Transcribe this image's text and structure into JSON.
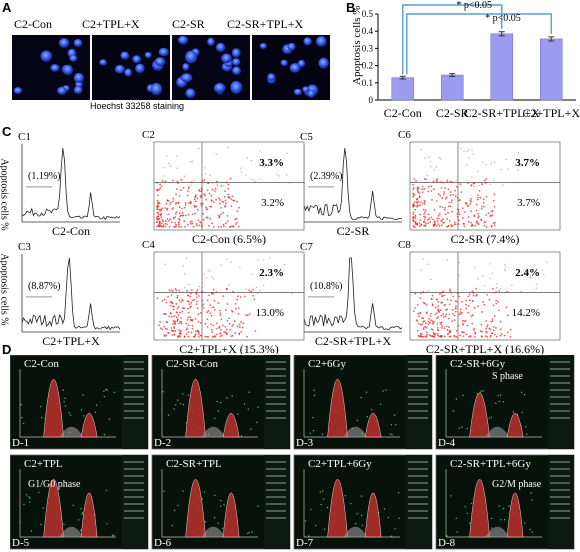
{
  "panelA": {
    "label": "A",
    "groups": [
      "C2-Con",
      "C2+TPL+X",
      "C2-SR",
      "C2-SR+TPL+X"
    ],
    "caption": "Hoechst 33258 staining"
  },
  "panelC": {
    "label": "C",
    "ylabel": "Apoptosis cells %",
    "histograms": [
      {
        "id": "C1",
        "pct": "(1.19%)",
        "name": "C2-Con"
      },
      {
        "id": "C3",
        "pct": "(8.87%)",
        "name": "C2+TPL+X"
      },
      {
        "id": "C5",
        "pct": "(2.39%)",
        "name": "C2-SR"
      },
      {
        "id": "C7",
        "pct": "(10.8%)",
        "name": "C2-SR+TPL+X"
      }
    ],
    "scatters": [
      {
        "id": "C2",
        "ur": "3.3%",
        "lr": "3.2%",
        "name": "C2-Con (6.5%)"
      },
      {
        "id": "C4",
        "ur": "2.3%",
        "lr": "13.0%",
        "name": "C2+TPL+X (15.3%)"
      },
      {
        "id": "C6",
        "ur": "3.7%",
        "lr": "3.7%",
        "name": "C2-SR (7.4%)"
      },
      {
        "id": "C8",
        "ur": "2.4%",
        "lr": "14.2%",
        "name": "C2-SR+TPL+X (16.6%)"
      }
    ]
  },
  "panelD": {
    "label": "D",
    "panels": [
      {
        "title": "C2-Con",
        "id": "D-1",
        "annotation": ""
      },
      {
        "title": "C2-SR-Con",
        "id": "D-2",
        "annotation": ""
      },
      {
        "title": "C2+6Gy",
        "id": "D-3",
        "annotation": ""
      },
      {
        "title": "C2-SR+6Gy",
        "id": "D-4",
        "annotation": "S phase"
      },
      {
        "title": "C2+TPL",
        "id": "D-5",
        "annotation": "G1/G0 phase"
      },
      {
        "title": "C2-SR+TPL",
        "id": "D-6",
        "annotation": ""
      },
      {
        "title": "C2+TPL+6Gy",
        "id": "D-7",
        "annotation": ""
      },
      {
        "title": "C2-SR+TPL+6Gy",
        "id": "D-8",
        "annotation": "G2/M phase"
      }
    ]
  },
  "chart_data": {
    "type": "bar",
    "panel_label": "B",
    "title": "",
    "xlabel": "",
    "ylabel": "Apoptosis cells %",
    "categories": [
      "C2-Con",
      "C2-SR",
      "C2-SR+TPL+X",
      "C2+TPL+X"
    ],
    "values": [
      0.13,
      0.145,
      0.385,
      0.355
    ],
    "errors": [
      0.008,
      0.008,
      0.012,
      0.012
    ],
    "ylim": [
      0,
      0.5
    ],
    "yticks": [
      "0",
      "0.1",
      "0.2",
      "0.3",
      "0.4",
      "0.5"
    ],
    "bar_color": "#9b9bf0",
    "bracket_color": "#5b9bd5",
    "annotations": [
      "* p<0.05",
      "* p<0.05"
    ],
    "grid": false
  }
}
